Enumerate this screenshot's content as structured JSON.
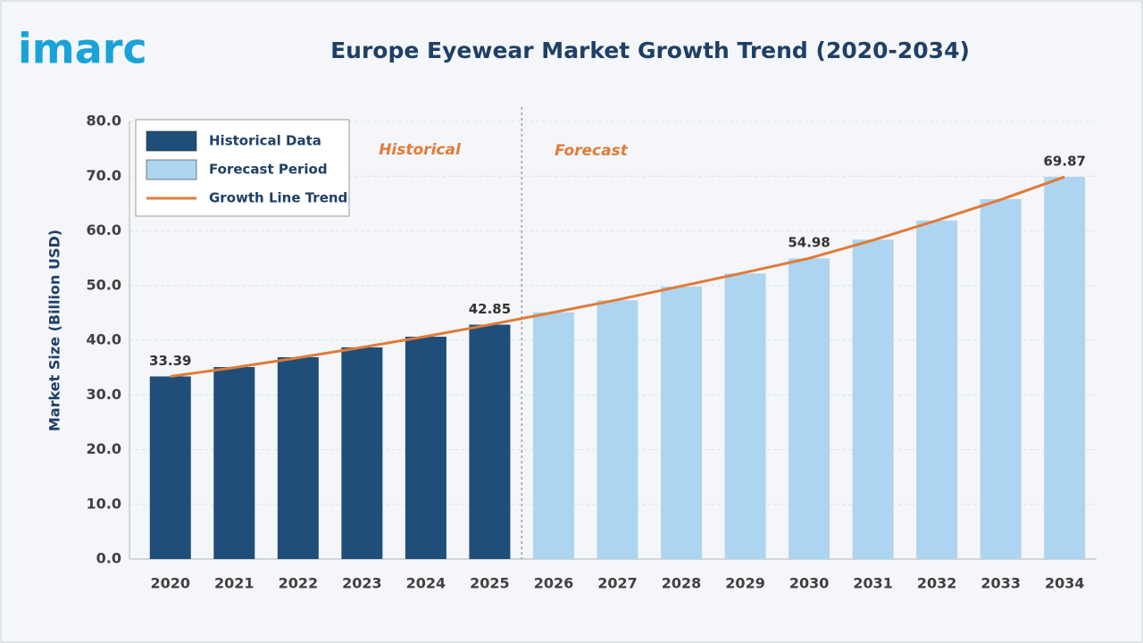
{
  "logo": "imarc",
  "chart_data": {
    "type": "bar",
    "title": "Europe Eyewear Market Growth Trend (2020-2034)",
    "y_label": "Market Size (Billion USD)",
    "annotations": [
      "Historical",
      "Forecast"
    ],
    "categories": [
      "2020",
      "2021",
      "2022",
      "2023",
      "2024",
      "2025",
      "2026",
      "2027",
      "2028",
      "2029",
      "2030",
      "2031",
      "2032",
      "2033",
      "2034"
    ],
    "series": [
      {
        "name": "Historical Data",
        "color": "#1f4e79",
        "values": [
          33.39,
          35.1,
          36.9,
          38.7,
          40.65,
          42.85,
          null,
          null,
          null,
          null,
          null,
          null,
          null,
          null,
          null
        ],
        "value_labels": [
          "33.39",
          null,
          null,
          null,
          null,
          "42.85",
          null,
          null,
          null,
          null,
          null,
          null,
          null,
          null,
          null
        ]
      },
      {
        "name": "Forecast Period",
        "color": "#add5ef",
        "values": [
          null,
          null,
          null,
          null,
          null,
          null,
          45.1,
          47.3,
          49.8,
          52.2,
          54.98,
          58.4,
          61.9,
          65.8,
          69.87
        ],
        "value_labels": [
          null,
          null,
          null,
          null,
          null,
          null,
          null,
          null,
          null,
          null,
          "54.98",
          null,
          null,
          null,
          "69.87"
        ]
      },
      {
        "name": "Growth Line Trend",
        "color": "#e07b39",
        "type": "line",
        "values": [
          33.39,
          35.0,
          36.8,
          38.7,
          40.7,
          42.85,
          45.1,
          47.4,
          49.9,
          52.4,
          54.98,
          58.3,
          61.9,
          65.7,
          69.87
        ]
      }
    ],
    "ylim": [
      0,
      80
    ],
    "yticks": [
      {
        "value": 0,
        "label": "0.0"
      },
      {
        "value": 10,
        "label": "10.0"
      },
      {
        "value": 20,
        "label": "20.0"
      },
      {
        "value": 30,
        "label": "30.0"
      },
      {
        "value": 40,
        "label": "40.0"
      },
      {
        "value": 50,
        "label": "50.0"
      },
      {
        "value": 60,
        "label": "60.0"
      },
      {
        "value": 70,
        "label": "70.0"
      },
      {
        "value": 80,
        "label": "80.0"
      }
    ],
    "grid": true,
    "legend": "upper left"
  }
}
